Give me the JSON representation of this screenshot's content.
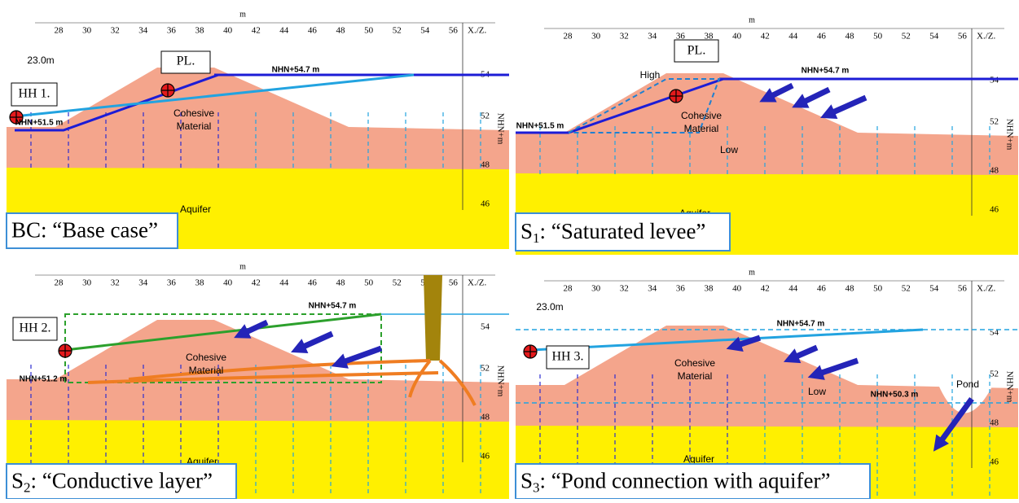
{
  "panels": [
    {
      "axis_unit": "m",
      "x_ticks": [
        28,
        30,
        32,
        34,
        36,
        38,
        40,
        42,
        44,
        46,
        48,
        50,
        52,
        54,
        56
      ],
      "axis_end_label": "X./Z.",
      "elevations": [
        54,
        52,
        48,
        46
      ],
      "elevation_axis_label": "NHN+m",
      "labels": [
        "23.0m",
        "HH 1.",
        "PL.",
        "NHN+54.7 m",
        "NHN+51.5 m",
        "Cohesive Material",
        "Aquifer"
      ],
      "caption": {
        "text": "BC: “Base case”"
      }
    },
    {
      "axis_unit": "m",
      "x_ticks": [
        28,
        30,
        32,
        34,
        36,
        38,
        40,
        42,
        44,
        46,
        48,
        50,
        52,
        54,
        56
      ],
      "axis_end_label": "X./Z.",
      "elevations": [
        54,
        52,
        48,
        46
      ],
      "elevation_axis_label": "NHN+m",
      "labels": [
        "PL.",
        "High",
        "NHN+54.7 m",
        "NHN+51.5 m",
        "Cohesive Material",
        "Low",
        "Aquifer"
      ],
      "caption": {
        "prefix": "S",
        "subscript": "1",
        "text": ": “Saturated levee”"
      }
    },
    {
      "axis_unit": "m",
      "x_ticks": [
        28,
        30,
        32,
        34,
        36,
        38,
        40,
        42,
        44,
        46,
        48,
        50,
        52,
        54,
        56
      ],
      "axis_end_label": "X./Z.",
      "elevations": [
        54,
        52,
        48,
        46
      ],
      "elevation_axis_label": "NHN+m",
      "labels": [
        "HH 2.",
        "NHN+54.7 m",
        "NHN+51.2 m",
        "Cohesive Material",
        "Aquifer"
      ],
      "caption": {
        "prefix": "S",
        "subscript": "2",
        "text": ": “Conductive layer”"
      }
    },
    {
      "axis_unit": "m",
      "x_ticks": [
        28,
        30,
        32,
        34,
        36,
        38,
        40,
        42,
        44,
        46,
        48,
        50,
        52,
        54,
        56
      ],
      "axis_end_label": "X./Z.",
      "elevations": [
        54,
        52,
        48,
        46
      ],
      "elevation_axis_label": "NHN+m",
      "labels": [
        "23.0m",
        "HH 3.",
        "NHN+54.7 m",
        "Cohesive Material",
        "Low",
        "NHN+50.3 m",
        "Pond",
        "Aquifer"
      ],
      "caption": {
        "prefix": "S",
        "subscript": "3",
        "text": ": “Pond connection with aquifer”"
      }
    }
  ]
}
